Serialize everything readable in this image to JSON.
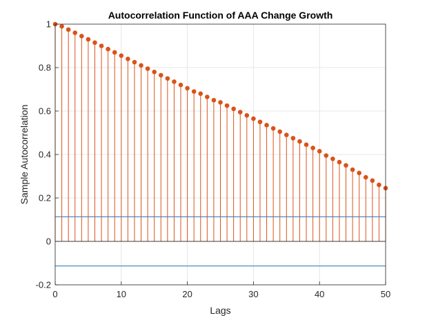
{
  "chart_data": {
    "type": "stem",
    "title": "Autocorrelation Function of AAA Change Growth",
    "xlabel": "Lags",
    "ylabel": "Sample Autocorrelation",
    "xlim": [
      0,
      50
    ],
    "ylim": [
      -0.2,
      1
    ],
    "xticks": [
      "0",
      "10",
      "20",
      "30",
      "40",
      "50"
    ],
    "yticks": [
      "-0.2",
      "0",
      "0.2",
      "0.4",
      "0.6",
      "0.8",
      "1"
    ],
    "grid": true,
    "stem_color": "#D95319",
    "bound_color": "#4A8BC9",
    "confidence_bounds": [
      0.113,
      -0.113
    ],
    "lags": [
      0,
      1,
      2,
      3,
      4,
      5,
      6,
      7,
      8,
      9,
      10,
      11,
      12,
      13,
      14,
      15,
      16,
      17,
      18,
      19,
      20,
      21,
      22,
      23,
      24,
      25,
      26,
      27,
      28,
      29,
      30,
      31,
      32,
      33,
      34,
      35,
      36,
      37,
      38,
      39,
      40,
      41,
      42,
      43,
      44,
      45,
      46,
      47,
      48,
      49,
      50
    ],
    "values": [
      1.0,
      0.99,
      0.975,
      0.96,
      0.945,
      0.93,
      0.915,
      0.9,
      0.885,
      0.87,
      0.855,
      0.84,
      0.825,
      0.81,
      0.795,
      0.78,
      0.765,
      0.75,
      0.735,
      0.72,
      0.705,
      0.69,
      0.68,
      0.665,
      0.65,
      0.64,
      0.625,
      0.61,
      0.595,
      0.58,
      0.565,
      0.55,
      0.535,
      0.52,
      0.505,
      0.49,
      0.475,
      0.46,
      0.445,
      0.43,
      0.415,
      0.395,
      0.38,
      0.365,
      0.35,
      0.33,
      0.315,
      0.295,
      0.28,
      0.26,
      0.245
    ]
  }
}
